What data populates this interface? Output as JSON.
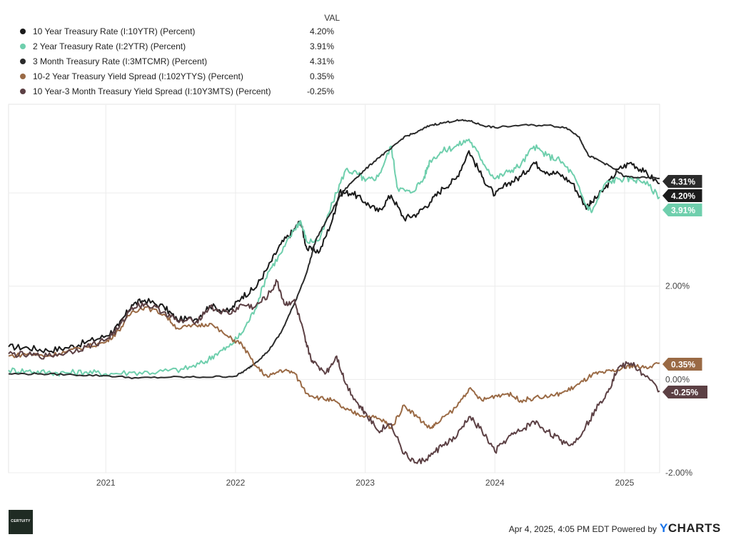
{
  "legend": {
    "header": "VAL",
    "items": [
      {
        "label": "10 Year Treasury Rate (I:10YTR) (Percent)",
        "value": "4.20%",
        "color": "#1b1b1b"
      },
      {
        "label": "2 Year Treasury Rate (I:2YTR) (Percent)",
        "value": "3.91%",
        "color": "#6fcfad"
      },
      {
        "label": "3 Month Treasury Rate (I:3MTCMR) (Percent)",
        "value": "4.31%",
        "color": "#2b2b2b"
      },
      {
        "label": "10-2 Year Treasury Yield Spread (I:102YTYS) (Percent)",
        "value": "0.35%",
        "color": "#9a6a45"
      },
      {
        "label": "10 Year-3 Month Treasury Yield Spread (I:10Y3MTS) (Percent)",
        "value": "-0.25%",
        "color": "#5c4044"
      }
    ]
  },
  "footer": {
    "date_text": "Apr 4, 2025, 4:05 PM EDT Powered by",
    "brand_y": "Y",
    "brand_rest": "CHARTS",
    "logo_text": "CERTUITY"
  },
  "chart_data": {
    "type": "line",
    "title": "",
    "xlabel": "",
    "ylabel": "",
    "x_ticks": [
      "2021",
      "2022",
      "2023",
      "2024",
      "2025"
    ],
    "y_ticks": [
      "2.00%",
      "0.00%",
      "-2.00%"
    ],
    "xlim": [
      2020.25,
      2025.27
    ],
    "ylim": [
      -2.0,
      5.9
    ],
    "grid": true,
    "series": [
      {
        "name": "10 Year Treasury Rate (I:10YTR) (Percent)",
        "color": "#1b1b1b",
        "end_label": "4.20%",
        "end_value": 4.2,
        "points": [
          [
            2020.25,
            0.7
          ],
          [
            2020.4,
            0.68
          ],
          [
            2020.55,
            0.62
          ],
          [
            2020.7,
            0.68
          ],
          [
            2020.85,
            0.8
          ],
          [
            2021.0,
            0.93
          ],
          [
            2021.1,
            1.15
          ],
          [
            2021.2,
            1.6
          ],
          [
            2021.3,
            1.7
          ],
          [
            2021.45,
            1.55
          ],
          [
            2021.55,
            1.28
          ],
          [
            2021.7,
            1.3
          ],
          [
            2021.8,
            1.58
          ],
          [
            2021.95,
            1.45
          ],
          [
            2022.05,
            1.78
          ],
          [
            2022.15,
            1.95
          ],
          [
            2022.25,
            2.4
          ],
          [
            2022.35,
            2.9
          ],
          [
            2022.45,
            3.2
          ],
          [
            2022.5,
            3.4
          ],
          [
            2022.55,
            2.8
          ],
          [
            2022.65,
            2.75
          ],
          [
            2022.75,
            3.45
          ],
          [
            2022.8,
            4.0
          ],
          [
            2022.9,
            4.0
          ],
          [
            2023.0,
            3.8
          ],
          [
            2023.1,
            3.6
          ],
          [
            2023.2,
            3.95
          ],
          [
            2023.3,
            3.45
          ],
          [
            2023.4,
            3.55
          ],
          [
            2023.5,
            3.8
          ],
          [
            2023.6,
            4.1
          ],
          [
            2023.7,
            4.3
          ],
          [
            2023.8,
            4.9
          ],
          [
            2023.9,
            4.35
          ],
          [
            2024.0,
            3.95
          ],
          [
            2024.1,
            4.2
          ],
          [
            2024.2,
            4.35
          ],
          [
            2024.3,
            4.65
          ],
          [
            2024.4,
            4.45
          ],
          [
            2024.5,
            4.4
          ],
          [
            2024.6,
            4.2
          ],
          [
            2024.7,
            3.7
          ],
          [
            2024.75,
            3.8
          ],
          [
            2024.85,
            4.1
          ],
          [
            2024.95,
            4.5
          ],
          [
            2025.05,
            4.65
          ],
          [
            2025.15,
            4.45
          ],
          [
            2025.27,
            4.2
          ]
        ]
      },
      {
        "name": "2 Year Treasury Rate (I:2YTR) (Percent)",
        "color": "#6fcfad",
        "end_label": "3.91%",
        "end_value": 3.91,
        "points": [
          [
            2020.25,
            0.2
          ],
          [
            2020.4,
            0.18
          ],
          [
            2020.55,
            0.15
          ],
          [
            2020.7,
            0.14
          ],
          [
            2020.85,
            0.16
          ],
          [
            2021.0,
            0.12
          ],
          [
            2021.2,
            0.15
          ],
          [
            2021.4,
            0.16
          ],
          [
            2021.6,
            0.22
          ],
          [
            2021.75,
            0.35
          ],
          [
            2021.85,
            0.55
          ],
          [
            2021.95,
            0.7
          ],
          [
            2022.05,
            1.0
          ],
          [
            2022.15,
            1.5
          ],
          [
            2022.25,
            2.3
          ],
          [
            2022.35,
            2.7
          ],
          [
            2022.45,
            3.2
          ],
          [
            2022.5,
            3.4
          ],
          [
            2022.55,
            2.95
          ],
          [
            2022.65,
            3.0
          ],
          [
            2022.75,
            3.8
          ],
          [
            2022.85,
            4.5
          ],
          [
            2022.95,
            4.4
          ],
          [
            2023.0,
            4.25
          ],
          [
            2023.1,
            4.35
          ],
          [
            2023.2,
            5.0
          ],
          [
            2023.25,
            4.1
          ],
          [
            2023.35,
            4.0
          ],
          [
            2023.45,
            4.3
          ],
          [
            2023.5,
            4.7
          ],
          [
            2023.6,
            4.9
          ],
          [
            2023.7,
            5.0
          ],
          [
            2023.8,
            5.15
          ],
          [
            2023.9,
            4.7
          ],
          [
            2024.0,
            4.3
          ],
          [
            2024.1,
            4.45
          ],
          [
            2024.2,
            4.6
          ],
          [
            2024.3,
            5.0
          ],
          [
            2024.4,
            4.8
          ],
          [
            2024.5,
            4.7
          ],
          [
            2024.6,
            4.4
          ],
          [
            2024.7,
            3.75
          ],
          [
            2024.75,
            3.6
          ],
          [
            2024.85,
            4.2
          ],
          [
            2024.95,
            4.3
          ],
          [
            2025.05,
            4.3
          ],
          [
            2025.15,
            4.25
          ],
          [
            2025.27,
            3.91
          ]
        ]
      },
      {
        "name": "3 Month Treasury Rate (I:3MTCMR) (Percent)",
        "color": "#2b2b2b",
        "end_label": "4.31%",
        "end_value": 4.31,
        "points": [
          [
            2020.25,
            0.12
          ],
          [
            2020.5,
            0.12
          ],
          [
            2020.75,
            0.1
          ],
          [
            2021.0,
            0.08
          ],
          [
            2021.25,
            0.03
          ],
          [
            2021.5,
            0.05
          ],
          [
            2021.75,
            0.05
          ],
          [
            2022.0,
            0.07
          ],
          [
            2022.08,
            0.2
          ],
          [
            2022.15,
            0.35
          ],
          [
            2022.25,
            0.6
          ],
          [
            2022.35,
            1.0
          ],
          [
            2022.45,
            1.6
          ],
          [
            2022.55,
            2.3
          ],
          [
            2022.62,
            3.0
          ],
          [
            2022.72,
            3.5
          ],
          [
            2022.82,
            4.0
          ],
          [
            2022.92,
            4.3
          ],
          [
            2023.0,
            4.5
          ],
          [
            2023.1,
            4.75
          ],
          [
            2023.2,
            4.95
          ],
          [
            2023.3,
            5.2
          ],
          [
            2023.4,
            5.3
          ],
          [
            2023.5,
            5.45
          ],
          [
            2023.6,
            5.5
          ],
          [
            2023.7,
            5.55
          ],
          [
            2023.8,
            5.55
          ],
          [
            2023.9,
            5.45
          ],
          [
            2024.0,
            5.4
          ],
          [
            2024.2,
            5.45
          ],
          [
            2024.4,
            5.45
          ],
          [
            2024.55,
            5.4
          ],
          [
            2024.65,
            5.2
          ],
          [
            2024.72,
            4.8
          ],
          [
            2024.8,
            4.7
          ],
          [
            2024.9,
            4.55
          ],
          [
            2025.0,
            4.35
          ],
          [
            2025.1,
            4.33
          ],
          [
            2025.27,
            4.31
          ]
        ]
      },
      {
        "name": "10-2 Year Treasury Yield Spread (I:102YTYS) (Percent)",
        "color": "#9a6a45",
        "end_label": "0.35%",
        "end_value": 0.35,
        "points": [
          [
            2020.25,
            0.5
          ],
          [
            2020.4,
            0.55
          ],
          [
            2020.55,
            0.5
          ],
          [
            2020.7,
            0.6
          ],
          [
            2020.85,
            0.7
          ],
          [
            2021.0,
            0.8
          ],
          [
            2021.1,
            1.05
          ],
          [
            2021.2,
            1.45
          ],
          [
            2021.3,
            1.55
          ],
          [
            2021.45,
            1.4
          ],
          [
            2021.55,
            1.1
          ],
          [
            2021.7,
            1.15
          ],
          [
            2021.8,
            1.2
          ],
          [
            2021.95,
            0.9
          ],
          [
            2022.05,
            0.75
          ],
          [
            2022.15,
            0.3
          ],
          [
            2022.25,
            0.05
          ],
          [
            2022.35,
            0.2
          ],
          [
            2022.45,
            0.15
          ],
          [
            2022.55,
            -0.3
          ],
          [
            2022.65,
            -0.4
          ],
          [
            2022.75,
            -0.45
          ],
          [
            2022.85,
            -0.65
          ],
          [
            2022.95,
            -0.75
          ],
          [
            2023.05,
            -0.8
          ],
          [
            2023.15,
            -0.9
          ],
          [
            2023.2,
            -1.05
          ],
          [
            2023.3,
            -0.55
          ],
          [
            2023.4,
            -0.8
          ],
          [
            2023.5,
            -1.05
          ],
          [
            2023.55,
            -0.95
          ],
          [
            2023.7,
            -0.6
          ],
          [
            2023.8,
            -0.2
          ],
          [
            2023.9,
            -0.45
          ],
          [
            2024.0,
            -0.35
          ],
          [
            2024.1,
            -0.3
          ],
          [
            2024.2,
            -0.45
          ],
          [
            2024.3,
            -0.4
          ],
          [
            2024.45,
            -0.35
          ],
          [
            2024.55,
            -0.25
          ],
          [
            2024.65,
            -0.1
          ],
          [
            2024.75,
            0.1
          ],
          [
            2024.85,
            0.15
          ],
          [
            2024.95,
            0.2
          ],
          [
            2025.05,
            0.3
          ],
          [
            2025.15,
            0.25
          ],
          [
            2025.27,
            0.35
          ]
        ]
      },
      {
        "name": "10 Year-3 Month Treasury Yield Spread (I:10Y3MTS) (Percent)",
        "color": "#5c4044",
        "end_label": "-0.25%",
        "end_value": -0.25,
        "points": [
          [
            2020.25,
            0.55
          ],
          [
            2020.4,
            0.52
          ],
          [
            2020.55,
            0.5
          ],
          [
            2020.7,
            0.58
          ],
          [
            2020.85,
            0.7
          ],
          [
            2021.0,
            0.85
          ],
          [
            2021.1,
            1.1
          ],
          [
            2021.2,
            1.55
          ],
          [
            2021.3,
            1.62
          ],
          [
            2021.45,
            1.45
          ],
          [
            2021.55,
            1.25
          ],
          [
            2021.7,
            1.25
          ],
          [
            2021.8,
            1.55
          ],
          [
            2021.95,
            1.4
          ],
          [
            2022.05,
            1.6
          ],
          [
            2022.15,
            1.55
          ],
          [
            2022.25,
            1.8
          ],
          [
            2022.32,
            2.1
          ],
          [
            2022.38,
            1.6
          ],
          [
            2022.45,
            1.7
          ],
          [
            2022.5,
            1.25
          ],
          [
            2022.55,
            0.7
          ],
          [
            2022.6,
            0.35
          ],
          [
            2022.7,
            0.15
          ],
          [
            2022.78,
            0.5
          ],
          [
            2022.85,
            -0.1
          ],
          [
            2022.95,
            -0.55
          ],
          [
            2023.0,
            -0.7
          ],
          [
            2023.1,
            -1.1
          ],
          [
            2023.2,
            -0.95
          ],
          [
            2023.3,
            -1.6
          ],
          [
            2023.4,
            -1.8
          ],
          [
            2023.5,
            -1.65
          ],
          [
            2023.6,
            -1.4
          ],
          [
            2023.7,
            -1.25
          ],
          [
            2023.8,
            -0.8
          ],
          [
            2023.9,
            -1.1
          ],
          [
            2024.0,
            -1.55
          ],
          [
            2024.1,
            -1.25
          ],
          [
            2024.2,
            -1.1
          ],
          [
            2024.3,
            -0.9
          ],
          [
            2024.4,
            -1.1
          ],
          [
            2024.5,
            -1.3
          ],
          [
            2024.6,
            -1.4
          ],
          [
            2024.7,
            -1.0
          ],
          [
            2024.8,
            -0.55
          ],
          [
            2024.88,
            -0.2
          ],
          [
            2024.95,
            0.25
          ],
          [
            2025.05,
            0.35
          ],
          [
            2025.15,
            0.1
          ],
          [
            2025.27,
            -0.25
          ]
        ]
      }
    ]
  }
}
